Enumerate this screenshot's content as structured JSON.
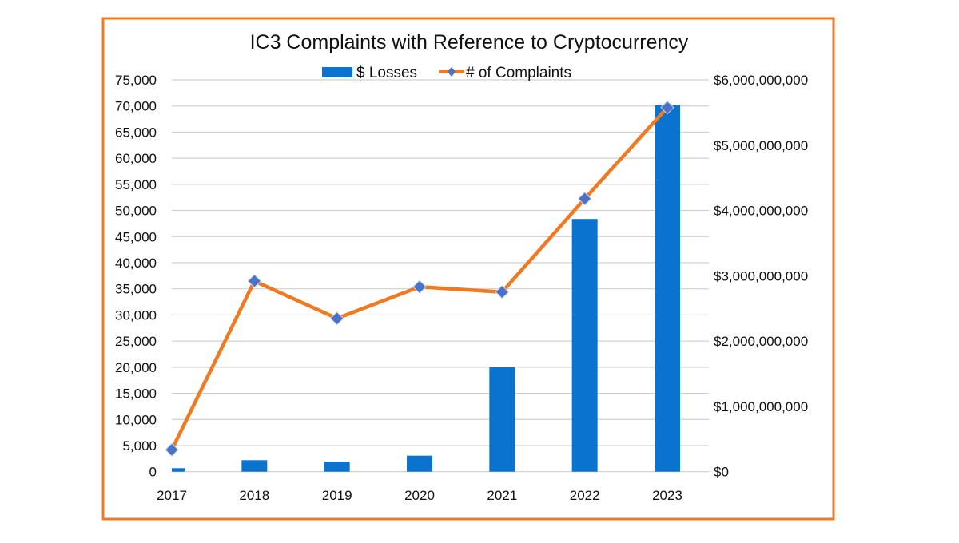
{
  "chart_data": {
    "type": "bar+line",
    "title": "IC3 Complaints with Reference to Cryptocurrency",
    "categories": [
      "2017",
      "2018",
      "2019",
      "2020",
      "2021",
      "2022",
      "2023"
    ],
    "legend_position": "top",
    "grid": true,
    "series": [
      {
        "name": "$ Losses",
        "type": "bar",
        "axis": "right",
        "color": "#0A72CF",
        "values": [
          54000000,
          176000000,
          152000000,
          245000000,
          1600000000,
          3870000000,
          5610000000
        ]
      },
      {
        "name": "# of Complaints",
        "type": "line",
        "axis": "left",
        "color": "#F07A22",
        "marker_color": "#4A72C8",
        "marker": "diamond",
        "values": [
          4190,
          36480,
          29340,
          35380,
          34390,
          52250,
          69700
        ]
      }
    ],
    "left_axis": {
      "ylim": [
        0,
        75000
      ],
      "ticks": [
        "0",
        "5,000",
        "10,000",
        "15,000",
        "20,000",
        "25,000",
        "30,000",
        "35,000",
        "40,000",
        "45,000",
        "50,000",
        "55,000",
        "60,000",
        "65,000",
        "70,000",
        "75,000"
      ]
    },
    "right_axis": {
      "ylim": [
        0,
        6000000000
      ],
      "ticks": [
        "$0",
        "$1,000,000,000",
        "$2,000,000,000",
        "$3,000,000,000",
        "$4,000,000,000",
        "$5,000,000,000",
        "$6,000,000,000"
      ]
    },
    "frame_color": "#F07A22"
  }
}
